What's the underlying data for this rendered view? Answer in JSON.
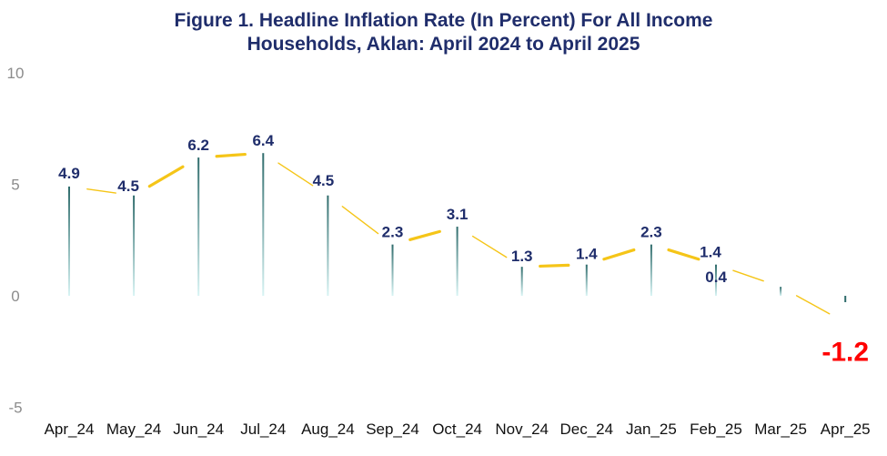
{
  "title_line1": "Figure 1.  Headline Inflation Rate (In Percent) For All Income",
  "title_line2": "Households, Aklan: April 2024 to April 2025",
  "chart_data": {
    "type": "line",
    "title": "Figure 1.  Headline Inflation Rate (In Percent) For All Income Households, Aklan: April 2024 to April 2025",
    "xlabel": "",
    "ylabel": "",
    "categories": [
      "Apr_24",
      "May_24",
      "Jun_24",
      "Jul_24",
      "Aug_24",
      "Sep_24",
      "Oct_24",
      "Nov_24",
      "Dec_24",
      "Jan_25",
      "Feb_25",
      "Mar_25",
      "Apr_25"
    ],
    "values": [
      4.9,
      4.5,
      6.2,
      6.4,
      4.5,
      2.3,
      3.1,
      1.3,
      1.4,
      2.3,
      1.4,
      0.4,
      -1.2
    ],
    "data_labels": [
      "4.9",
      "4.5",
      "6.2",
      "6.4",
      "4.5",
      "2.3",
      "3.1",
      "1.3",
      "1.4",
      "2.3",
      "1.4",
      "0.4",
      "-1.2"
    ],
    "ylim": [
      -5,
      10
    ],
    "yticks": [
      10,
      5,
      0,
      -5
    ],
    "ytick_labels": [
      "10",
      "5",
      "0",
      "-5"
    ],
    "grid": false,
    "legend": "none",
    "colors": {
      "line": "#f5c518",
      "stem": "#2e6b6b",
      "stem_fade": "#d8f4f4",
      "label": "#1f2d6b",
      "highlight": "#ff0000",
      "title": "#1f2d6b"
    }
  }
}
